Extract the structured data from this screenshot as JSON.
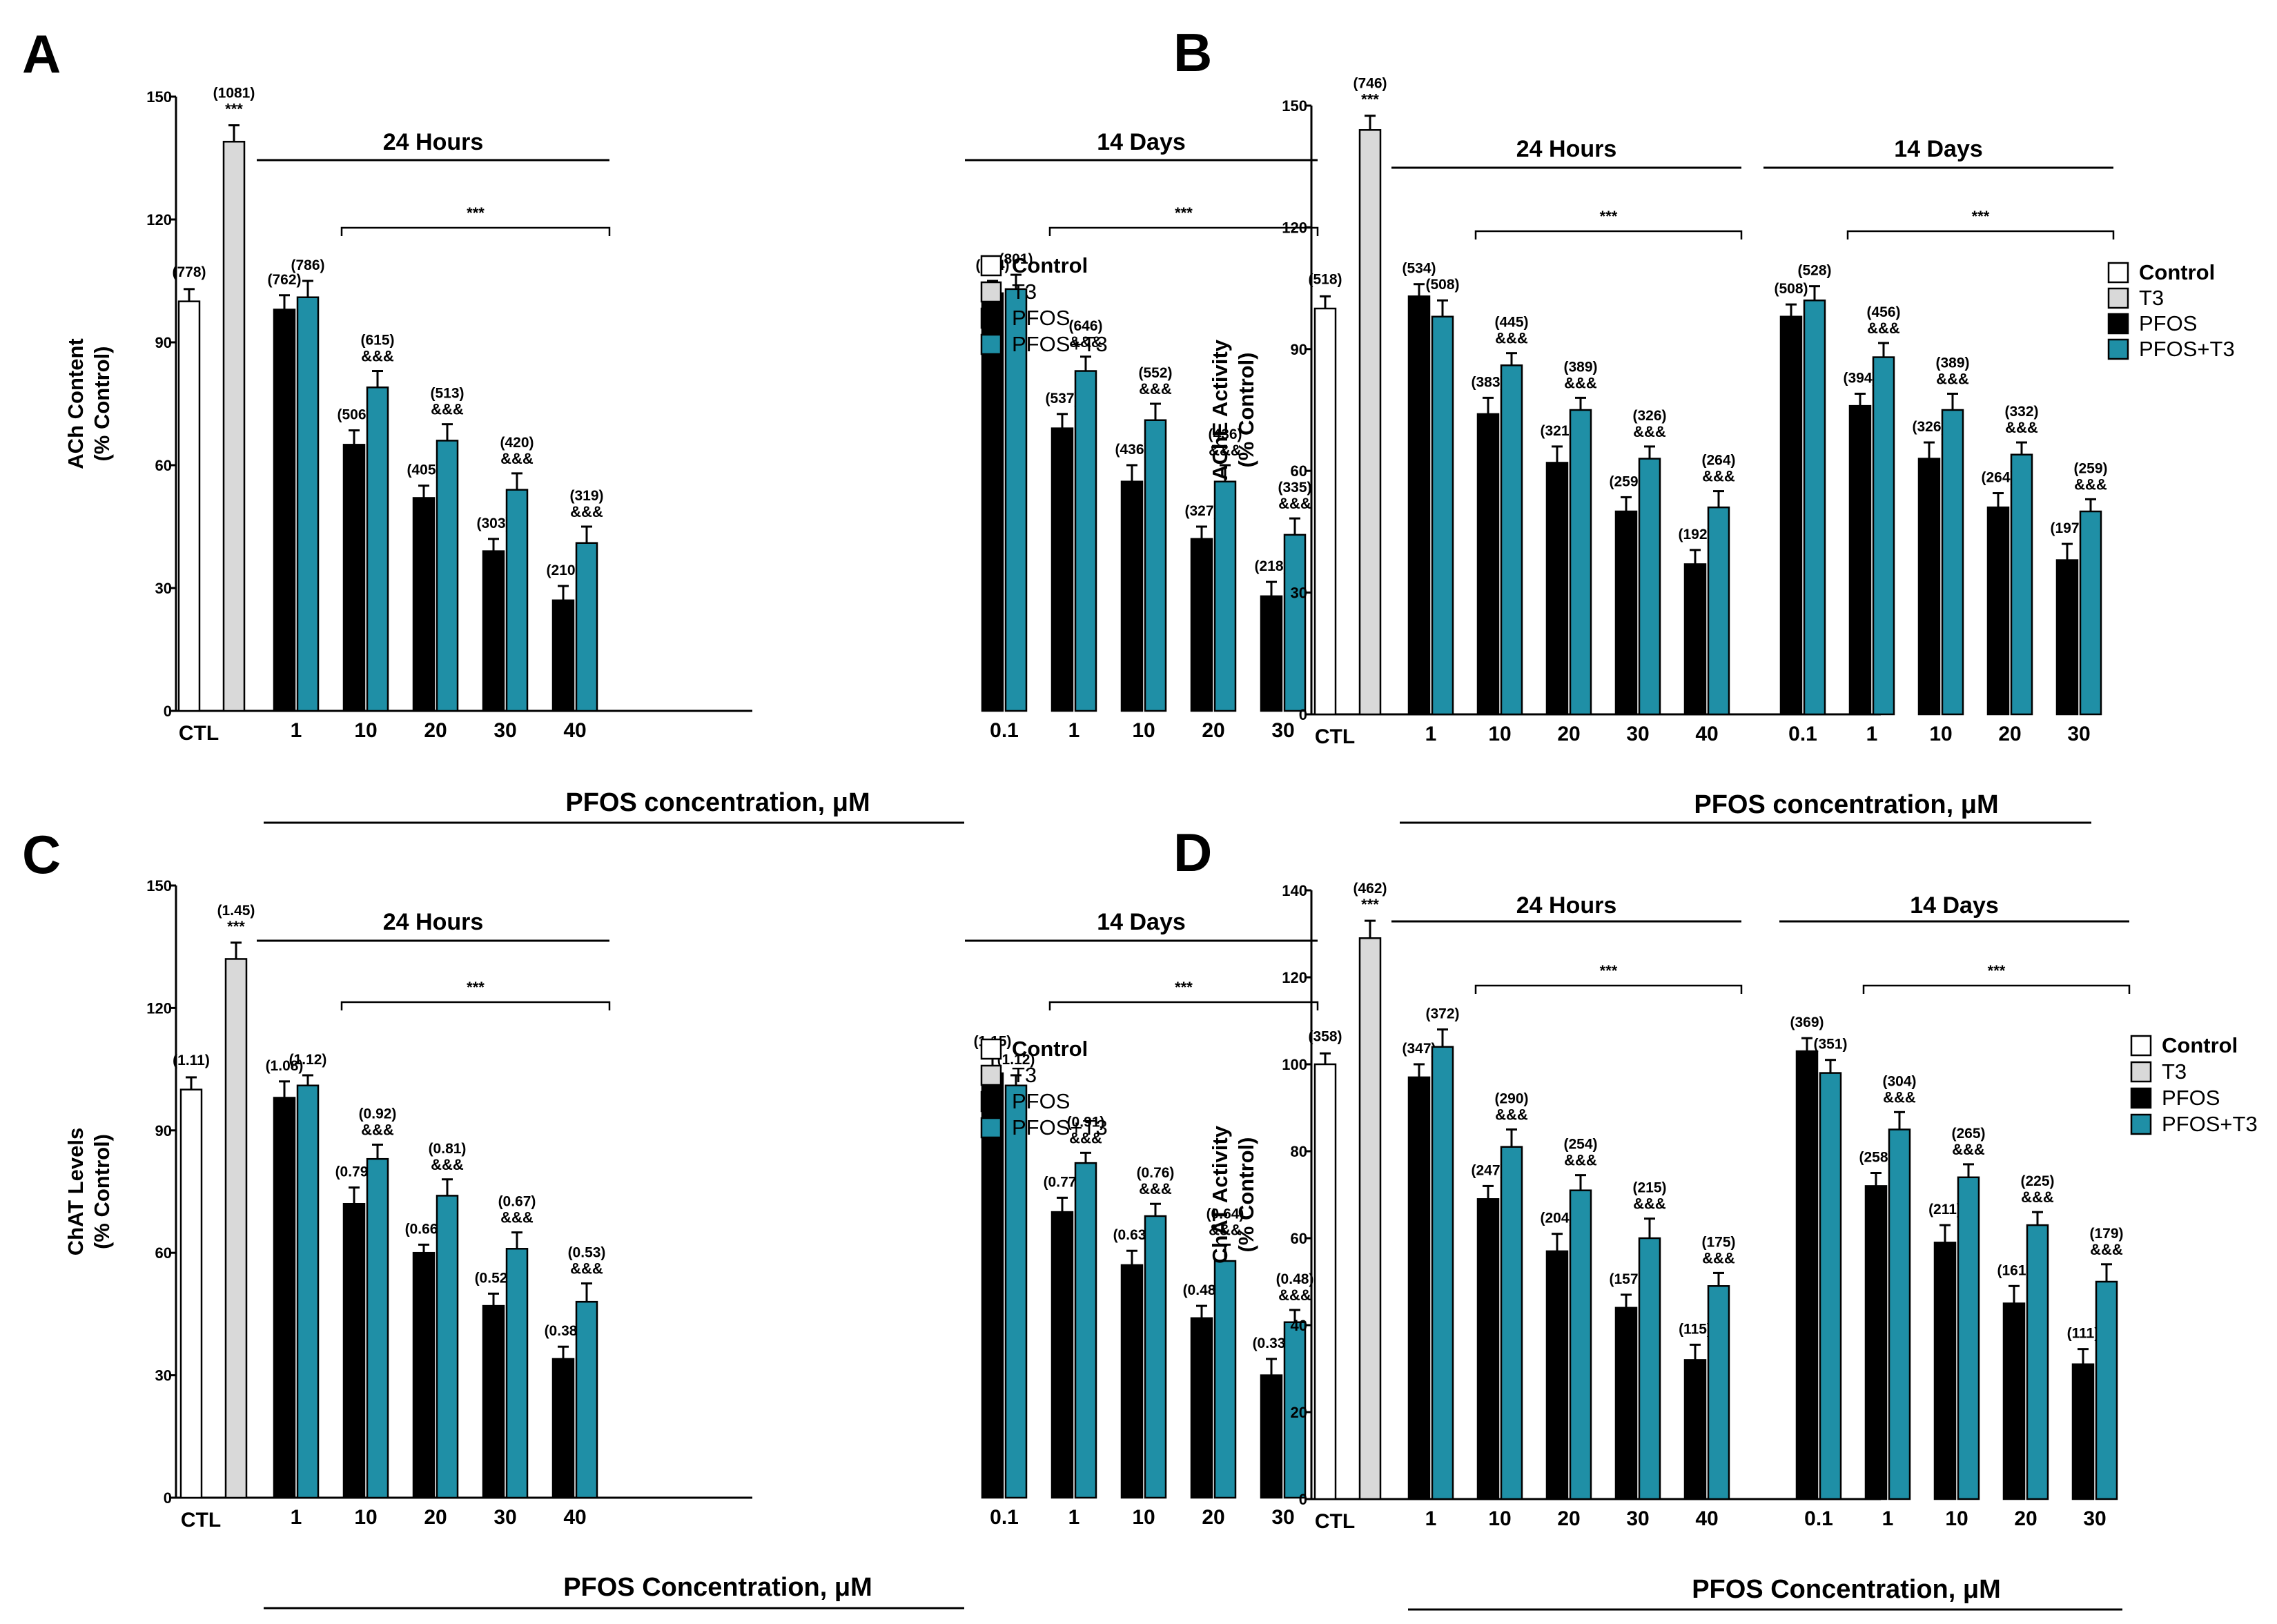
{
  "colors": {
    "Control": "#ffffff",
    "T3": "#d9d9d9",
    "PFOS": "#000000",
    "PFOS+T3": "#1f8fa6"
  },
  "chart_data": [
    {
      "panel": "A",
      "type": "bar",
      "ylabel": "ACh Content\n(% Control)",
      "ylim": [
        0,
        150
      ],
      "yticks": [
        "0",
        "30",
        "60",
        "90",
        "120",
        "150"
      ],
      "xlabel": "PFOS concentration, μM",
      "legend": [
        "Control",
        "T3",
        "PFOS",
        "PFOS+T3"
      ],
      "group_titles": [
        "24 Hours",
        "14 Days"
      ],
      "sig_brackets": [
        "***",
        "***"
      ],
      "control": {
        "category": "CTL",
        "values": [
          100,
          139
        ],
        "errors": [
          3,
          4
        ],
        "labels": [
          "(778)",
          "(1081)"
        ],
        "sig": "***"
      },
      "groups": [
        {
          "title": "24 Hours",
          "categories": [
            "1",
            "10",
            "20",
            "30",
            "40"
          ],
          "series": [
            {
              "name": "PFOS",
              "values": [
                98,
                65,
                52,
                39,
                27
              ],
              "errors": [
                3.5,
                3.5,
                3,
                3,
                3.5
              ],
              "labels": [
                "(762)",
                "(506)",
                "(405)",
                "(303)",
                "(210)"
              ]
            },
            {
              "name": "PFOS+T3",
              "values": [
                101,
                79,
                66,
                54,
                41
              ],
              "errors": [
                4,
                4,
                4,
                4,
                4
              ],
              "labels": [
                "(786)",
                "(615)",
                "(513)",
                "(420)",
                "(319)"
              ],
              "sig": [
                "",
                "&&&",
                "&&&",
                "&&&",
                "&&&"
              ]
            }
          ]
        },
        {
          "title": "14 Days",
          "categories": [
            "0.1",
            "1",
            "10",
            "20",
            "30"
          ],
          "series": [
            {
              "name": "PFOS",
              "values": [
                102,
                69,
                56,
                42,
                28
              ],
              "errors": [
                3,
                3.5,
                4,
                3,
                3.5
              ],
              "labels": [
                "(794)",
                "(537)",
                "(436)",
                "(327)",
                "(218)"
              ]
            },
            {
              "name": "PFOS+T3",
              "values": [
                103,
                83,
                71,
                56,
                43
              ],
              "errors": [
                3.5,
                3.5,
                4,
                4,
                4
              ],
              "labels": [
                "(801)",
                "(646)",
                "(552)",
                "(436)",
                "(335)"
              ],
              "sig": [
                "",
                "&&&",
                "&&&",
                "&&&",
                "&&&"
              ]
            }
          ]
        }
      ]
    },
    {
      "panel": "B",
      "type": "bar",
      "ylabel": "AChE Activity\n(% Control)",
      "ylim": [
        0,
        150
      ],
      "yticks": [
        "0",
        "30",
        "60",
        "90",
        "120",
        "150"
      ],
      "xlabel": "PFOS concentration, μM",
      "legend": [
        "Control",
        "T3",
        "PFOS",
        "PFOS+T3"
      ],
      "group_titles": [
        "24 Hours",
        "14 Days"
      ],
      "sig_brackets": [
        "***",
        "***"
      ],
      "control": {
        "category": "CTL",
        "values": [
          100,
          144
        ],
        "errors": [
          3,
          3.5
        ],
        "labels": [
          "(518)",
          "(746)"
        ],
        "sig": "***"
      },
      "groups": [
        {
          "title": "24 Hours",
          "categories": [
            "1",
            "10",
            "20",
            "30",
            "40"
          ],
          "series": [
            {
              "name": "PFOS",
              "values": [
                103,
                74,
                62,
                50,
                37
              ],
              "errors": [
                3,
                4,
                4,
                3.5,
                3.5
              ],
              "labels": [
                "(534)",
                "(383)",
                "(321)",
                "(259)",
                "(192)"
              ]
            },
            {
              "name": "PFOS+T3",
              "values": [
                98,
                86,
                75,
                63,
                51
              ],
              "errors": [
                4,
                3,
                3,
                3,
                4
              ],
              "labels": [
                "(508)",
                "(445)",
                "(389)",
                "(326)",
                "(264)"
              ],
              "sig": [
                "",
                "&&&",
                "&&&",
                "&&&",
                "&&&"
              ]
            }
          ]
        },
        {
          "title": "14 Days",
          "categories": [
            "0.1",
            "1",
            "10",
            "20",
            "30"
          ],
          "series": [
            {
              "name": "PFOS",
              "values": [
                98,
                76,
                63,
                51,
                38
              ],
              "errors": [
                3,
                3,
                4,
                3.5,
                4
              ],
              "labels": [
                "(508)",
                "(394)",
                "(326)",
                "(264)",
                "(197)"
              ]
            },
            {
              "name": "PFOS+T3",
              "values": [
                102,
                88,
                75,
                64,
                50
              ],
              "errors": [
                3.5,
                3.5,
                4,
                3,
                3
              ],
              "labels": [
                "(528)",
                "(456)",
                "(389)",
                "(332)",
                "(259)"
              ],
              "sig": [
                "",
                "&&&",
                "&&&",
                "&&&",
                "&&&"
              ]
            }
          ]
        }
      ]
    },
    {
      "panel": "C",
      "type": "bar",
      "ylabel": "ChAT Levels\n(% Control)",
      "ylim": [
        0,
        150
      ],
      "yticks": [
        "0",
        "30",
        "60",
        "90",
        "120",
        "150"
      ],
      "xlabel": "PFOS Concentration, μM",
      "legend": [
        "Control",
        "T3",
        "PFOS",
        "PFOS+T3"
      ],
      "group_titles": [
        "24 Hours",
        "14 Days"
      ],
      "sig_brackets": [
        "***",
        "***"
      ],
      "control": {
        "category": "CTL",
        "values": [
          100,
          132
        ],
        "errors": [
          3,
          4
        ],
        "labels": [
          "(1.11)",
          "(1.45)"
        ],
        "sig": "***"
      },
      "groups": [
        {
          "title": "24 Hours",
          "categories": [
            "1",
            "10",
            "20",
            "30",
            "40"
          ],
          "series": [
            {
              "name": "PFOS",
              "values": [
                98,
                72,
                60,
                47,
                34
              ],
              "errors": [
                4,
                4,
                2,
                3,
                3
              ],
              "labels": [
                "(1.08)",
                "(0.79)",
                "(0.66)",
                "(0.52)",
                "(0.38)"
              ]
            },
            {
              "name": "PFOS+T3",
              "values": [
                101,
                83,
                74,
                61,
                48
              ],
              "errors": [
                2.5,
                3.5,
                4,
                4,
                4.5
              ],
              "labels": [
                "(1.12)",
                "(0.92)",
                "(0.81)",
                "(0.67)",
                "(0.53)"
              ],
              "sig": [
                "",
                "&&&",
                "&&&",
                "&&&",
                "&&&"
              ]
            }
          ]
        },
        {
          "title": "14 Days",
          "categories": [
            "0.1",
            "1",
            "10",
            "20",
            "30"
          ],
          "series": [
            {
              "name": "PFOS",
              "values": [
                104,
                70,
                57,
                44,
                30
              ],
              "errors": [
                4,
                3.5,
                3.5,
                3,
                4
              ],
              "labels": [
                "(1.15)",
                "(0.77)",
                "(0.63)",
                "(0.48)",
                "(0.33)"
              ]
            },
            {
              "name": "PFOS+T3",
              "values": [
                101,
                82,
                69,
                58,
                43
              ],
              "errors": [
                2.5,
                2.5,
                3,
                4,
                3
              ],
              "labels": [
                "(1.12)",
                "(0.91)",
                "(0.76)",
                "(0.64)",
                "(0.48)"
              ],
              "sig": [
                "",
                "&&&",
                "&&&",
                "&&&",
                "&&&"
              ]
            }
          ]
        }
      ]
    },
    {
      "panel": "D",
      "type": "bar",
      "ylabel": "ChAT Activity\n(% Control)",
      "ylim": [
        0,
        140
      ],
      "yticks": [
        "0",
        "20",
        "40",
        "60",
        "80",
        "100",
        "120",
        "140"
      ],
      "xlabel": "PFOS Concentration, μM",
      "legend": [
        "Control",
        "T3",
        "PFOS",
        "PFOS+T3"
      ],
      "group_titles": [
        "24 Hours",
        "14 Days"
      ],
      "sig_brackets": [
        "***",
        "***"
      ],
      "control": {
        "category": "CTL",
        "values": [
          100,
          129
        ],
        "errors": [
          2.5,
          4
        ],
        "labels": [
          "(358)",
          "(462)"
        ],
        "sig": "***"
      },
      "groups": [
        {
          "title": "24 Hours",
          "categories": [
            "1",
            "10",
            "20",
            "30",
            "40"
          ],
          "series": [
            {
              "name": "PFOS",
              "values": [
                97,
                69,
                57,
                44,
                32
              ],
              "errors": [
                3,
                3,
                4,
                3,
                3.5
              ],
              "labels": [
                "(347)",
                "(247)",
                "(204)",
                "(157)",
                "(115)"
              ]
            },
            {
              "name": "PFOS+T3",
              "values": [
                104,
                81,
                71,
                60,
                49
              ],
              "errors": [
                4,
                4,
                3.5,
                4.5,
                3
              ],
              "labels": [
                "(372)",
                "(290)",
                "(254)",
                "(215)",
                "(175)"
              ],
              "sig": [
                "",
                "&&&",
                "&&&",
                "&&&",
                "&&&"
              ]
            }
          ]
        },
        {
          "title": "14 Days",
          "categories": [
            "0.1",
            "1",
            "10",
            "20",
            "30"
          ],
          "series": [
            {
              "name": "PFOS",
              "values": [
                103,
                72,
                59,
                45,
                31
              ],
              "errors": [
                3,
                3,
                4,
                4,
                3.5
              ],
              "labels": [
                "(369)",
                "(258)",
                "(211)",
                "(161)",
                "(111)"
              ]
            },
            {
              "name": "PFOS+T3",
              "values": [
                98,
                85,
                74,
                63,
                50
              ],
              "errors": [
                3,
                4,
                3,
                3,
                4
              ],
              "labels": [
                "(351)",
                "(304)",
                "(265)",
                "(225)",
                "(179)"
              ],
              "sig": [
                "",
                "&&&",
                "&&&",
                "&&&",
                "&&&"
              ]
            }
          ]
        }
      ]
    }
  ]
}
